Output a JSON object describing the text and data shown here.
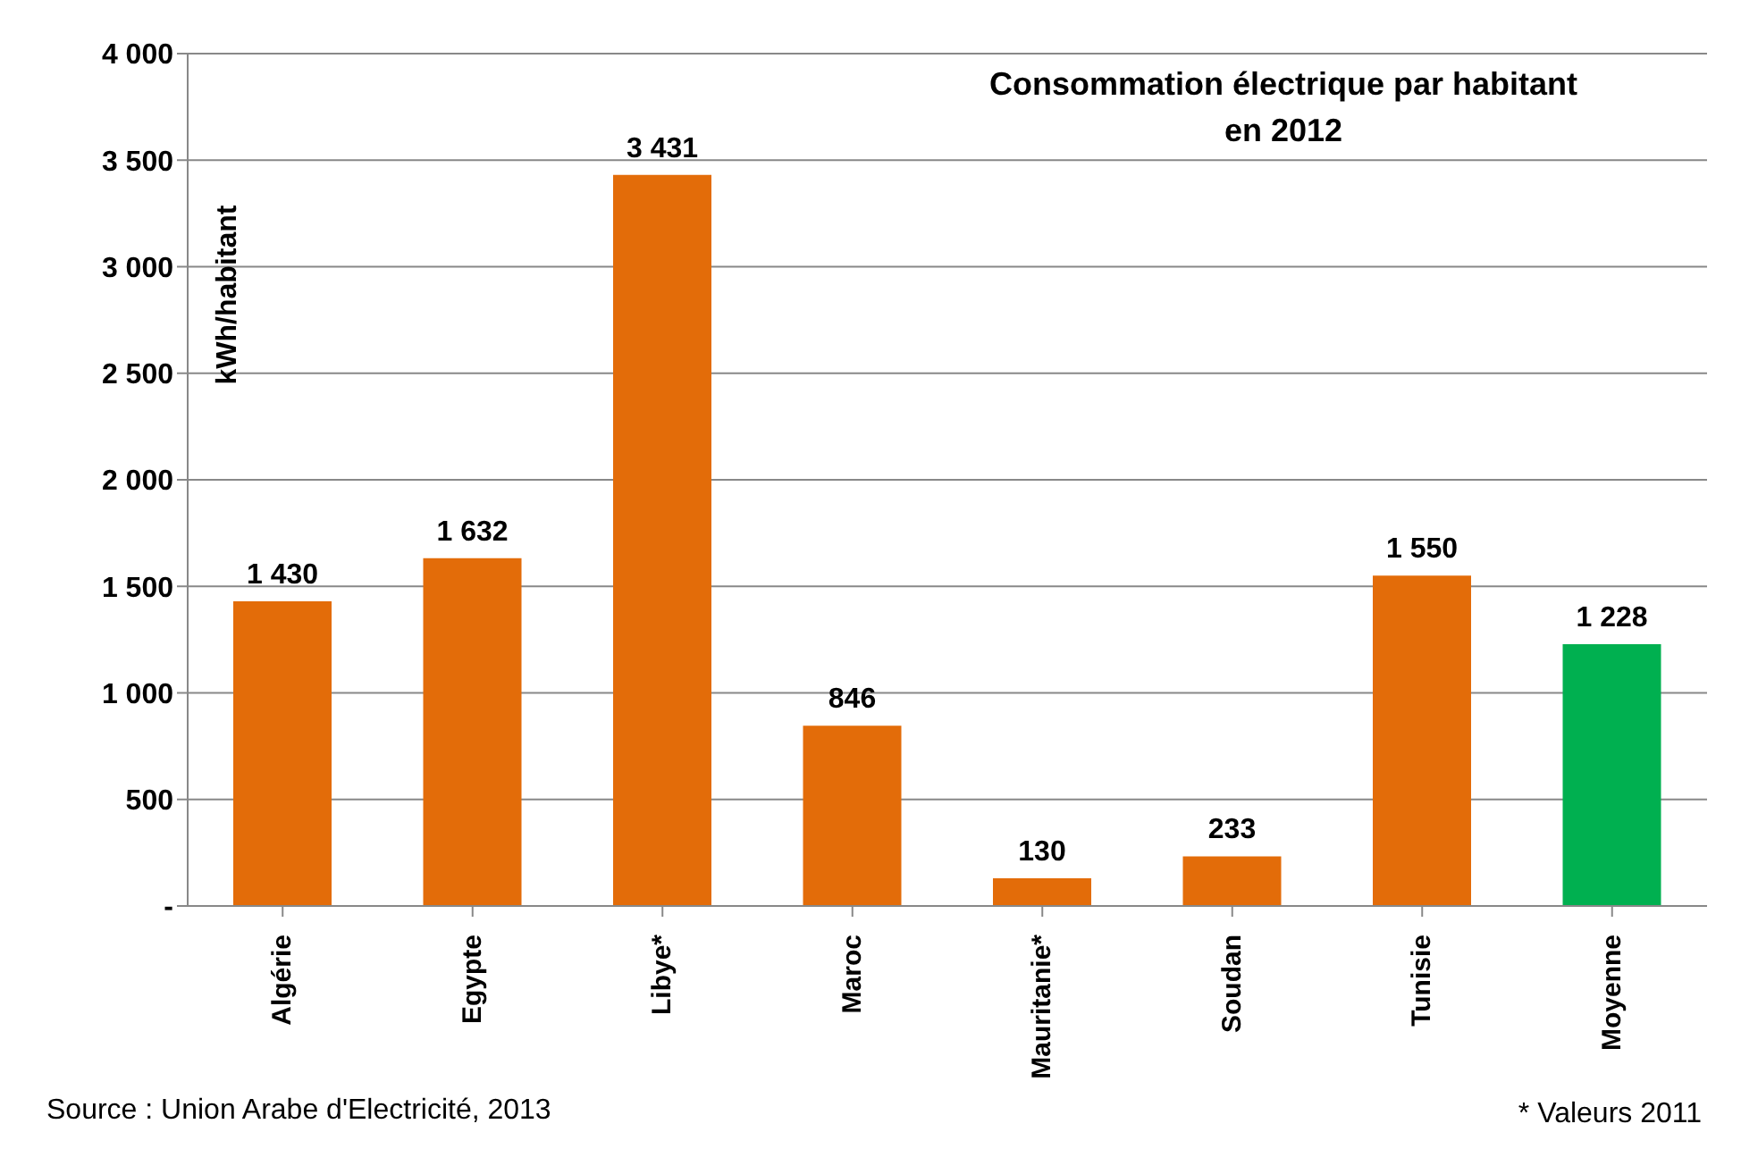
{
  "chart_data": {
    "type": "bar",
    "title": "Consommation électrique par habitant\nen 2012",
    "ylabel": "kWh/habitant",
    "categories": [
      "Algérie",
      "Egypte",
      "Libye*",
      "Maroc",
      "Mauritanie*",
      "Soudan",
      "Tunisie",
      "Moyenne"
    ],
    "values": [
      1430,
      1632,
      3431,
      846,
      130,
      233,
      1550,
      1228
    ],
    "colors": [
      "#e36c09",
      "#e36c09",
      "#e36c09",
      "#e36c09",
      "#e36c09",
      "#e36c09",
      "#e36c09",
      "#00b050"
    ],
    "value_labels": [
      "1 430",
      "1 632",
      "3 431",
      "846",
      "130",
      "233",
      "1 550",
      "1 228"
    ],
    "ylim": [
      0,
      4000
    ],
    "yticks": [
      {
        "value": 0,
        "label": "-"
      },
      500,
      {
        "value": 1000,
        "label": "1 000"
      },
      {
        "value": 1500,
        "label": "1 500"
      },
      {
        "value": 2000,
        "label": "2 000"
      },
      {
        "value": 2500,
        "label": "2 500"
      },
      {
        "value": 3000,
        "label": "3 000"
      },
      {
        "value": 3500,
        "label": "3 500"
      },
      {
        "value": 4000,
        "label": "4 000"
      }
    ],
    "grid": "y",
    "annotations": [
      "Source : Union Arabe d'Electricité, 2013",
      "* Valeurs 2011"
    ]
  }
}
